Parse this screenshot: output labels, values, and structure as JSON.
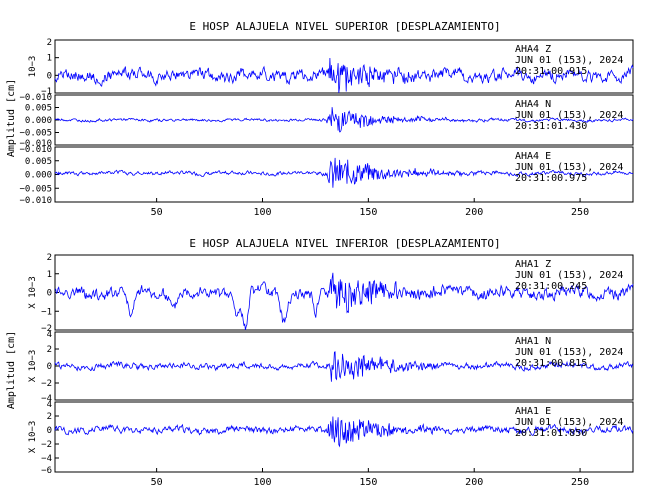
{
  "chart_data": [
    {
      "type": "line",
      "title": "E HOSP ALAJUELA NIVEL SUPERIOR [DESPLAZAMIENTO]",
      "ylabel": "Amplitud [cm]",
      "xlim": [
        2,
        275
      ],
      "x_ticks": [
        50,
        100,
        150,
        200,
        250
      ],
      "panels": [
        {
          "ylim": [
            -1,
            2
          ],
          "y_ticks": [
            "2",
            "1",
            "0",
            "−1"
          ],
          "multiplier_label": "10−3",
          "annotation": [
            "AHA4  Z",
            "JUN 01 (153), 2024",
            "20:31:00.915"
          ],
          "noise": 0.38,
          "event": 1.2,
          "low_freq": 0.0
        },
        {
          "ylim": [
            -0.01,
            0.01
          ],
          "y_ticks": [
            "−0.010",
            "0.005",
            "0.000",
            "−0.005",
            "−0.010"
          ],
          "multiplier_label": "",
          "annotation": [
            "AHA4  N",
            "JUN 01 (153), 2024",
            "20:31:01.430"
          ],
          "noise": 0.0006,
          "event": 0.0065,
          "low_freq": 0.0
        },
        {
          "ylim": [
            -0.011,
            0.01
          ],
          "y_ticks": [
            "−0.010",
            "0.005",
            "0.000",
            "−0.005",
            "−0.010"
          ],
          "multiplier_label": "",
          "annotation": [
            "AHA4  E",
            "JUN 01 (153), 2024",
            "20:31:00.975"
          ],
          "noise": 0.0008,
          "event": 0.0075,
          "low_freq": 0.0
        }
      ]
    },
    {
      "type": "line",
      "title": "E HOSP ALAJUELA NIVEL INFERIOR [DESPLAZAMIENTO]",
      "ylabel": "Amplitud [cm]",
      "xlim": [
        2,
        275
      ],
      "x_ticks": [
        50,
        100,
        150,
        200,
        250
      ],
      "panels": [
        {
          "ylim": [
            -2,
            2
          ],
          "y_ticks": [
            "2",
            "1",
            "0",
            "−1",
            "−2"
          ],
          "multiplier_label": "X 10−3",
          "annotation": [
            "AHA1  Z",
            "JUN 01 (153), 2024",
            "20:31:00.245"
          ],
          "noise": 0.35,
          "event": 1.3,
          "low_freq": 1.0
        },
        {
          "ylim": [
            -4,
            4
          ],
          "y_ticks": [
            "4",
            "2",
            "0",
            "−2",
            "−4"
          ],
          "multiplier_label": "X 10−3",
          "annotation": [
            "AHA1  N",
            "JUN 01 (153), 2024",
            "20:31:00.815"
          ],
          "noise": 0.4,
          "event": 2.6,
          "low_freq": 0.0
        },
        {
          "ylim": [
            -6,
            4
          ],
          "y_ticks": [
            "4",
            "2",
            "0",
            "−2",
            "−4",
            "−6"
          ],
          "multiplier_label": "X 10−3",
          "annotation": [
            "AHA1  E",
            "JUN 01 (153), 2024",
            "20:31:01.850"
          ],
          "noise": 0.55,
          "event": 3.0,
          "low_freq": 0.0
        }
      ]
    }
  ],
  "colors": {
    "trace": "#0000ff",
    "axes": "#000000",
    "background": "#ffffff"
  }
}
